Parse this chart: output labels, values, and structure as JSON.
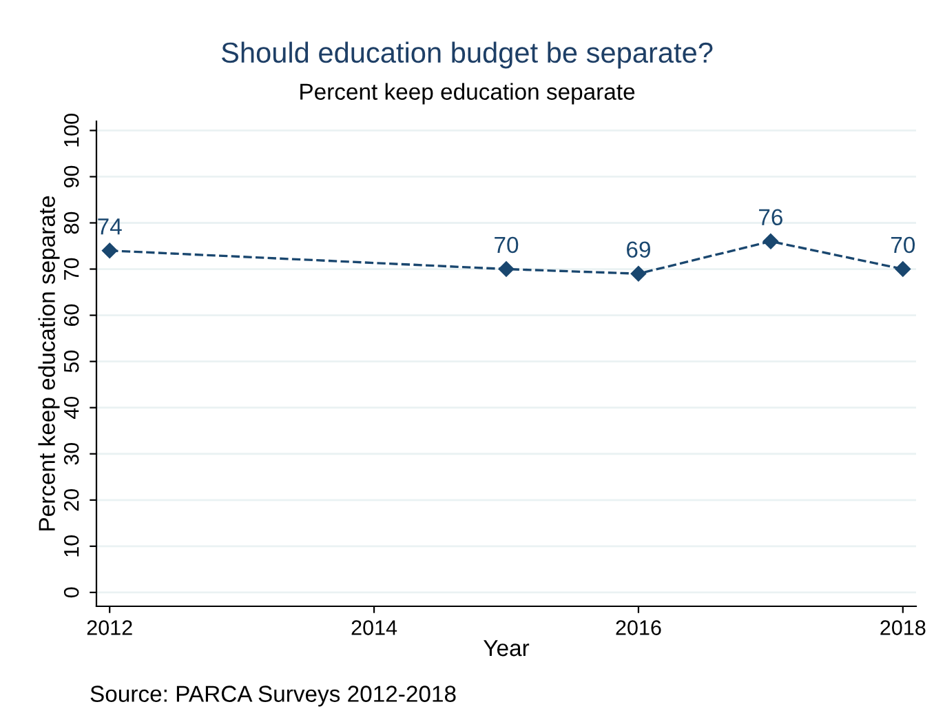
{
  "chart_data": {
    "type": "line",
    "title": "Should education budget be separate?",
    "subtitle": "Percent keep education separate",
    "xlabel": "Year",
    "ylabel": "Percent keep education separate",
    "x": [
      2012,
      2015,
      2016,
      2017,
      2018
    ],
    "series": [
      {
        "color": "#1a476f",
        "values": [
          74,
          70,
          69,
          76,
          70
        ]
      }
    ],
    "xlim": [
      2011.9,
      2018.1
    ],
    "xticks": [
      2012,
      2014,
      2016,
      2018
    ],
    "ylim": [
      -3,
      102
    ],
    "yticks": [
      0,
      10,
      20,
      30,
      40,
      50,
      60,
      70,
      80,
      90,
      100
    ],
    "grid": "y",
    "marker": "diamond",
    "line_style": "dashed",
    "data_labels": true,
    "legend": false,
    "annotations": [
      "Source: PARCA Surveys 2012-2018"
    ]
  }
}
